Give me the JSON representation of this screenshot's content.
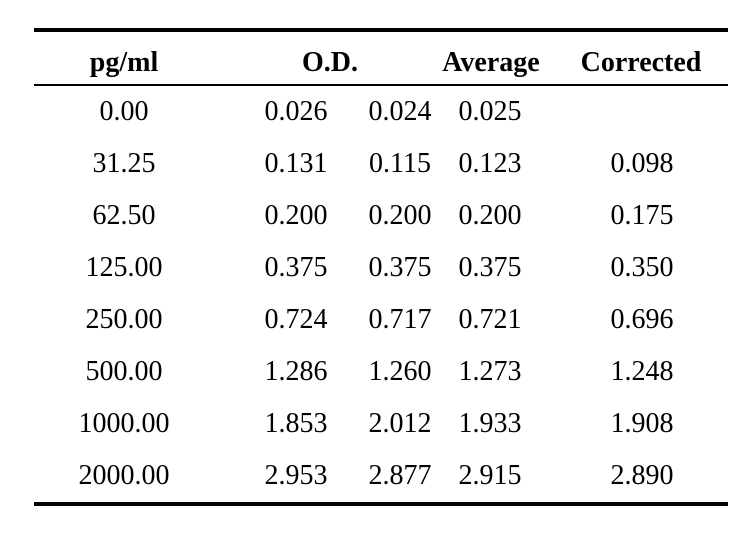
{
  "table": {
    "headers": {
      "concentration": "pg/ml",
      "od": "O.D.",
      "average": "Average",
      "corrected": "Corrected"
    },
    "rows": [
      {
        "concentration": "0.00",
        "od1": "0.026",
        "od2": "0.024",
        "average": "0.025",
        "corrected": ""
      },
      {
        "concentration": "31.25",
        "od1": "0.131",
        "od2": "0.115",
        "average": "0.123",
        "corrected": "0.098"
      },
      {
        "concentration": "62.50",
        "od1": "0.200",
        "od2": "0.200",
        "average": "0.200",
        "corrected": "0.175"
      },
      {
        "concentration": "125.00",
        "od1": "0.375",
        "od2": "0.375",
        "average": "0.375",
        "corrected": "0.350"
      },
      {
        "concentration": "250.00",
        "od1": "0.724",
        "od2": "0.717",
        "average": "0.721",
        "corrected": "0.696"
      },
      {
        "concentration": "500.00",
        "od1": "1.286",
        "od2": "1.260",
        "average": "1.273",
        "corrected": "1.248"
      },
      {
        "concentration": "1000.00",
        "od1": "1.853",
        "od2": "2.012",
        "average": "1.933",
        "corrected": "1.908"
      },
      {
        "concentration": "2000.00",
        "od1": "2.953",
        "od2": "2.877",
        "average": "2.915",
        "corrected": "2.890"
      }
    ]
  }
}
